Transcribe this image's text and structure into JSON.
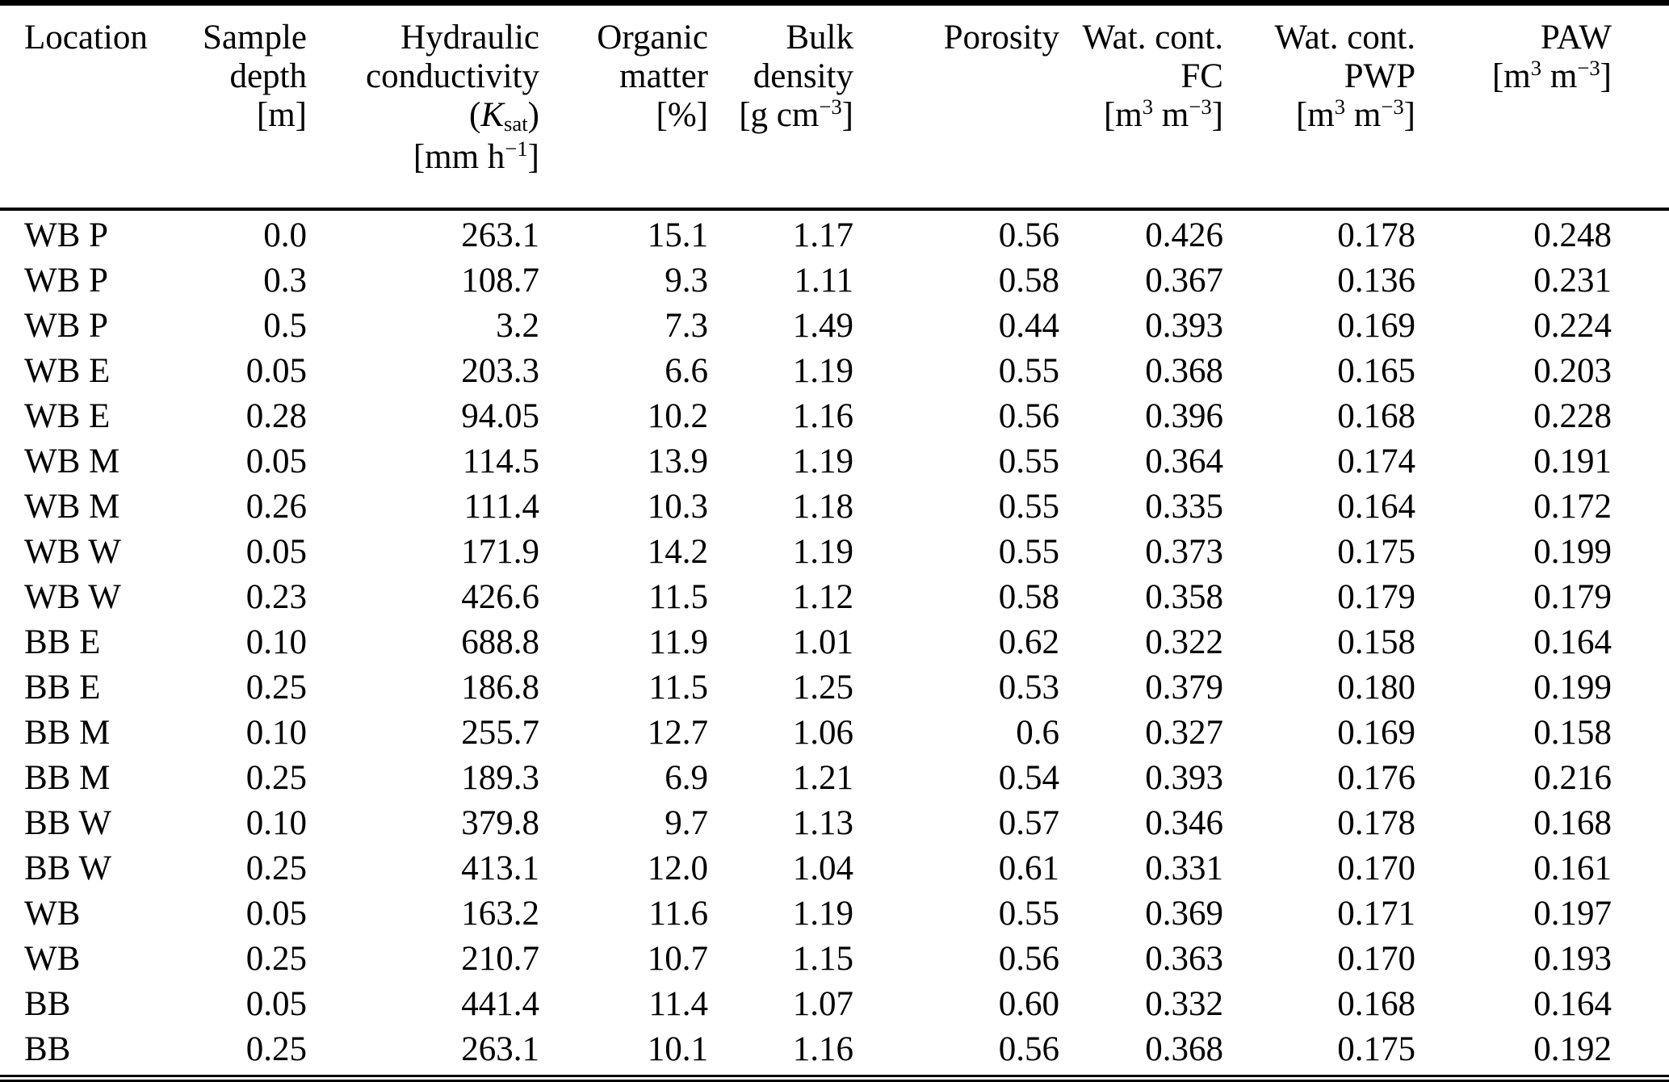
{
  "table": {
    "columns": [
      {
        "id": "location",
        "header_lines": [
          [
            "Location"
          ]
        ]
      },
      {
        "id": "sample_depth",
        "header_lines": [
          [
            "Sample"
          ],
          [
            "depth"
          ],
          [
            "[m]"
          ]
        ]
      },
      {
        "id": "hydraulic_conductivity",
        "header_lines": [
          [
            "Hydraulic"
          ],
          [
            "conductivity"
          ],
          [
            "(",
            {
              "i": "K"
            },
            {
              "sub": "sat"
            },
            ")"
          ],
          [
            "[mm h",
            {
              "sup": "−1"
            },
            "]"
          ]
        ]
      },
      {
        "id": "organic_matter",
        "header_lines": [
          [
            "Organic"
          ],
          [
            "matter"
          ],
          [
            "[%]"
          ]
        ]
      },
      {
        "id": "bulk_density",
        "header_lines": [
          [
            "Bulk"
          ],
          [
            "density"
          ],
          [
            "[g cm",
            {
              "sup": "−3"
            },
            "]"
          ]
        ]
      },
      {
        "id": "porosity",
        "header_lines": [
          [
            "Porosity"
          ]
        ]
      },
      {
        "id": "wat_cont_fc",
        "header_lines": [
          [
            "Wat. cont."
          ],
          [
            "FC"
          ],
          [
            "[m",
            {
              "sup": "3"
            },
            " m",
            {
              "sup": "−3"
            },
            "]"
          ]
        ]
      },
      {
        "id": "wat_cont_pwp",
        "header_lines": [
          [
            "Wat. cont."
          ],
          [
            "PWP"
          ],
          [
            "[m",
            {
              "sup": "3"
            },
            " m",
            {
              "sup": "−3"
            },
            "]"
          ]
        ]
      },
      {
        "id": "paw",
        "header_lines": [
          [
            "PAW"
          ],
          [
            "[m",
            {
              "sup": "3"
            },
            " m",
            {
              "sup": "−3"
            },
            "]"
          ]
        ]
      }
    ],
    "rows": [
      [
        "WB P",
        "0.0",
        "263.1",
        "15.1",
        "1.17",
        "0.56",
        "0.426",
        "0.178",
        "0.248"
      ],
      [
        "WB P",
        "0.3",
        "108.7",
        "9.3",
        "1.11",
        "0.58",
        "0.367",
        "0.136",
        "0.231"
      ],
      [
        "WB P",
        "0.5",
        "3.2",
        "7.3",
        "1.49",
        "0.44",
        "0.393",
        "0.169",
        "0.224"
      ],
      [
        "WB E",
        "0.05",
        "203.3",
        "6.6",
        "1.19",
        "0.55",
        "0.368",
        "0.165",
        "0.203"
      ],
      [
        "WB E",
        "0.28",
        "94.05",
        "10.2",
        "1.16",
        "0.56",
        "0.396",
        "0.168",
        "0.228"
      ],
      [
        "WB M",
        "0.05",
        "114.5",
        "13.9",
        "1.19",
        "0.55",
        "0.364",
        "0.174",
        "0.191"
      ],
      [
        "WB M",
        "0.26",
        "111.4",
        "10.3",
        "1.18",
        "0.55",
        "0.335",
        "0.164",
        "0.172"
      ],
      [
        "WB W",
        "0.05",
        "171.9",
        "14.2",
        "1.19",
        "0.55",
        "0.373",
        "0.175",
        "0.199"
      ],
      [
        "WB W",
        "0.23",
        "426.6",
        "11.5",
        "1.12",
        "0.58",
        "0.358",
        "0.179",
        "0.179"
      ],
      [
        "BB E",
        "0.10",
        "688.8",
        "11.9",
        "1.01",
        "0.62",
        "0.322",
        "0.158",
        "0.164"
      ],
      [
        "BB E",
        "0.25",
        "186.8",
        "11.5",
        "1.25",
        "0.53",
        "0.379",
        "0.180",
        "0.199"
      ],
      [
        "BB M",
        "0.10",
        "255.7",
        "12.7",
        "1.06",
        "0.6",
        "0.327",
        "0.169",
        "0.158"
      ],
      [
        "BB M",
        "0.25",
        "189.3",
        "6.9",
        "1.21",
        "0.54",
        "0.393",
        "0.176",
        "0.216"
      ],
      [
        "BB W",
        "0.10",
        "379.8",
        "9.7",
        "1.13",
        "0.57",
        "0.346",
        "0.178",
        "0.168"
      ],
      [
        "BB W",
        "0.25",
        "413.1",
        "12.0",
        "1.04",
        "0.61",
        "0.331",
        "0.170",
        "0.161"
      ],
      [
        "WB",
        "0.05",
        "163.2",
        "11.6",
        "1.19",
        "0.55",
        "0.369",
        "0.171",
        "0.197"
      ],
      [
        "WB",
        "0.25",
        "210.7",
        "10.7",
        "1.15",
        "0.56",
        "0.363",
        "0.170",
        "0.193"
      ],
      [
        "BB",
        "0.05",
        "441.4",
        "11.4",
        "1.07",
        "0.60",
        "0.332",
        "0.168",
        "0.164"
      ],
      [
        "BB",
        "0.25",
        "263.1",
        "10.1",
        "1.16",
        "0.56",
        "0.368",
        "0.175",
        "0.192"
      ]
    ]
  }
}
